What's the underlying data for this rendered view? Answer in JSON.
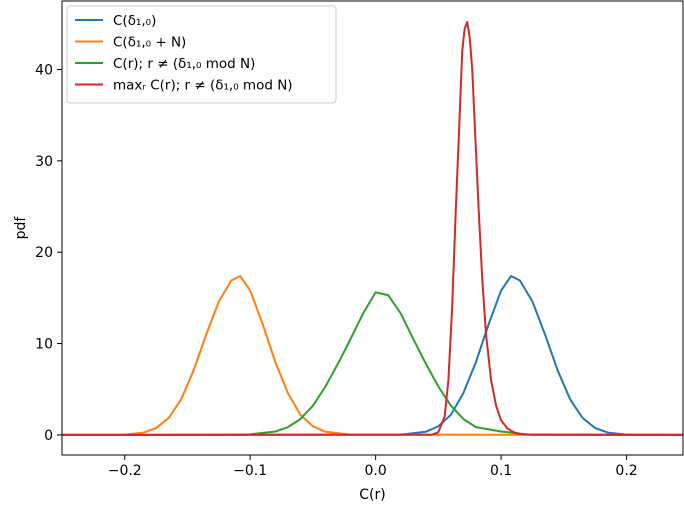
{
  "chart_data": {
    "type": "line",
    "xlabel": "C(r)",
    "ylabel": "pdf",
    "xlim": [
      -0.25,
      0.245
    ],
    "ylim": [
      -2.2,
      47.5
    ],
    "xticks": [
      -0.2,
      -0.1,
      0.0,
      0.1,
      0.2
    ],
    "xtick_labels": [
      "−0.2",
      "−0.1",
      "0.0",
      "0.1",
      "0.2"
    ],
    "yticks": [
      0,
      10,
      20,
      30,
      40
    ],
    "ytick_labels": [
      "0",
      "10",
      "20",
      "30",
      "40"
    ],
    "grid": false,
    "legend_position": "top-left",
    "series": [
      {
        "name": "C(δ₁,₀)",
        "color": "#1f77b4",
        "x": [
          -0.25,
          0.02,
          0.04,
          0.05,
          0.06,
          0.07,
          0.08,
          0.09,
          0.1,
          0.108,
          0.115,
          0.125,
          0.135,
          0.145,
          0.155,
          0.165,
          0.175,
          0.185,
          0.2,
          0.245
        ],
        "y": [
          0,
          0.03,
          0.34,
          0.95,
          2.2,
          4.6,
          8.0,
          12.1,
          15.8,
          17.4,
          16.9,
          14.6,
          11.0,
          7.1,
          3.9,
          1.85,
          0.75,
          0.25,
          0.03,
          0
        ]
      },
      {
        "name": "C(δ₁,₀ + N)",
        "color": "#ff7f0e",
        "x": [
          -0.25,
          -0.2,
          -0.185,
          -0.175,
          -0.165,
          -0.155,
          -0.145,
          -0.135,
          -0.125,
          -0.115,
          -0.108,
          -0.1,
          -0.09,
          -0.08,
          -0.07,
          -0.06,
          -0.05,
          -0.04,
          -0.02,
          0.245
        ],
        "y": [
          0,
          0.03,
          0.25,
          0.75,
          1.85,
          3.9,
          7.1,
          11.0,
          14.6,
          16.9,
          17.4,
          15.8,
          12.1,
          8.0,
          4.6,
          2.2,
          0.95,
          0.34,
          0.03,
          0
        ]
      },
      {
        "name": "C(r); r ≠ (δ₁,₀ mod N)",
        "color": "#2ca02c",
        "x": [
          -0.25,
          -0.12,
          -0.1,
          -0.08,
          -0.07,
          -0.06,
          -0.05,
          -0.04,
          -0.03,
          -0.02,
          -0.01,
          0.0,
          0.01,
          0.02,
          0.03,
          0.04,
          0.05,
          0.06,
          0.07,
          0.08,
          0.1,
          0.12,
          0.245
        ],
        "y": [
          0,
          0.01,
          0.06,
          0.37,
          0.85,
          1.73,
          3.2,
          5.3,
          7.8,
          10.5,
          13.3,
          15.6,
          15.3,
          13.3,
          10.5,
          7.8,
          5.3,
          3.2,
          1.73,
          0.85,
          0.37,
          0.06,
          0
        ]
      },
      {
        "name": "maxᵣ C(r); r ≠ (δ₁,₀ mod N)",
        "color": "#d62728",
        "x": [
          -0.25,
          0.045,
          0.05,
          0.055,
          0.058,
          0.061,
          0.064,
          0.067,
          0.069,
          0.071,
          0.073,
          0.075,
          0.077,
          0.079,
          0.082,
          0.085,
          0.088,
          0.092,
          0.096,
          0.1,
          0.105,
          0.11,
          0.115,
          0.125,
          0.245
        ],
        "y": [
          0,
          0.02,
          0.3,
          2.0,
          6.0,
          14.0,
          25.0,
          35.0,
          42.0,
          44.5,
          45.2,
          43.5,
          40.0,
          34.0,
          25.0,
          17.0,
          11.0,
          6.0,
          3.2,
          1.6,
          0.7,
          0.3,
          0.1,
          0.02,
          0
        ]
      }
    ]
  }
}
